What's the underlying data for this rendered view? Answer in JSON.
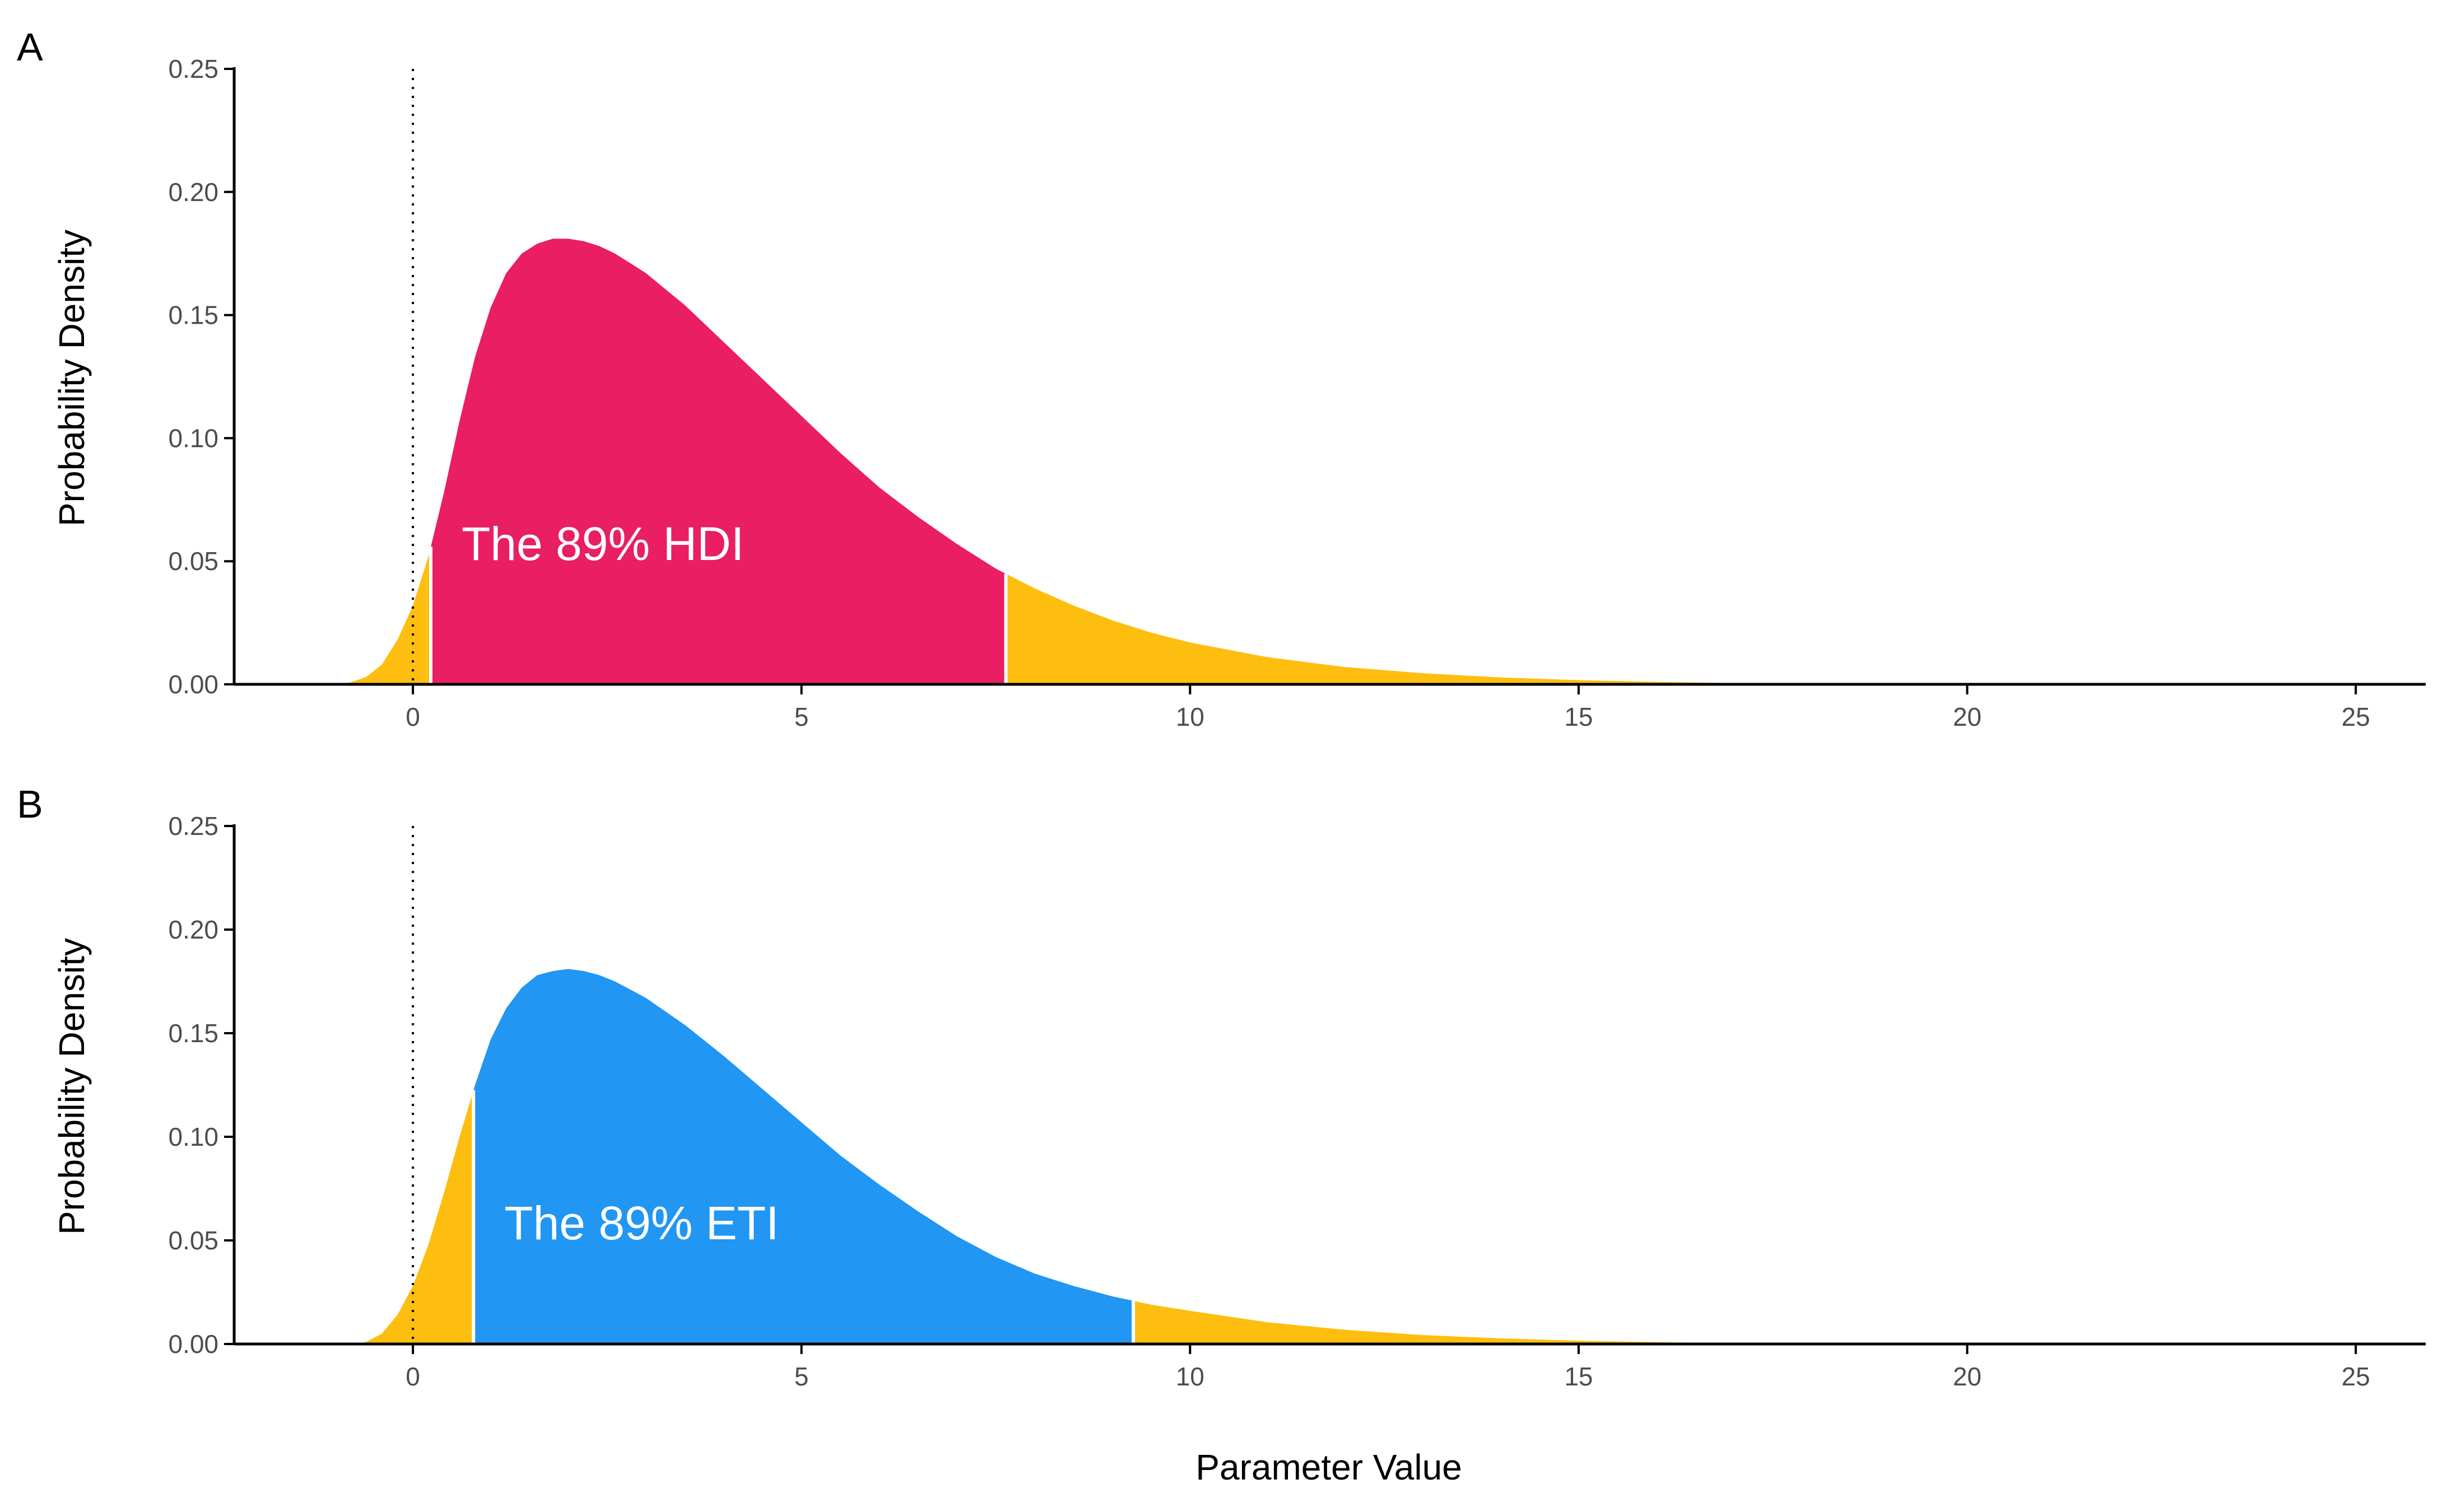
{
  "figure": {
    "xlabel": "Parameter Value",
    "colors": {
      "tail": "#FEBE10",
      "hdi": "#E91E63",
      "eti": "#2196F3",
      "axis": "#000000",
      "divider": "#FFFFFF"
    }
  },
  "chart_data": [
    {
      "type": "area",
      "panel_label": "A",
      "title": "",
      "xlabel": "Parameter Value",
      "ylabel": "Probability Density",
      "xlim": [
        -2.3,
        25.9
      ],
      "ylim": [
        0,
        0.25
      ],
      "x_ticks": [
        0,
        5,
        10,
        15,
        20,
        25
      ],
      "x_tick_labels": [
        "0",
        "5",
        "10",
        "15",
        "20",
        "25"
      ],
      "y_ticks": [
        0,
        0.05,
        0.1,
        0.15,
        0.2,
        0.25
      ],
      "y_tick_labels": [
        "0.00",
        "0.05",
        "0.10",
        "0.15",
        "0.20",
        "0.25"
      ],
      "grid": false,
      "reference_line": {
        "x": 0,
        "style": "dotted"
      },
      "interval": {
        "kind": "HDI",
        "level": 0.89,
        "lower": 0.23,
        "upper": 7.63,
        "label": "The 89% HDI"
      },
      "density": {
        "x": [
          -1.0,
          -0.8,
          -0.6,
          -0.4,
          -0.2,
          0.0,
          0.2,
          0.4,
          0.6,
          0.8,
          1.0,
          1.2,
          1.4,
          1.6,
          1.8,
          2.0,
          2.2,
          2.4,
          2.6,
          2.8,
          3.0,
          3.5,
          4.0,
          4.5,
          5.0,
          5.5,
          6.0,
          6.5,
          7.0,
          7.5,
          8.0,
          8.5,
          9.0,
          9.5,
          10.0,
          11.0,
          12.0,
          13.0,
          14.0,
          15.0,
          16.0,
          17.0,
          17.8
        ],
        "y": [
          0.0,
          0.0008,
          0.003,
          0.008,
          0.018,
          0.032,
          0.052,
          0.078,
          0.107,
          0.133,
          0.153,
          0.167,
          0.175,
          0.179,
          0.181,
          0.181,
          0.18,
          0.178,
          0.175,
          0.171,
          0.167,
          0.154,
          0.139,
          0.124,
          0.109,
          0.094,
          0.08,
          0.068,
          0.057,
          0.047,
          0.039,
          0.032,
          0.026,
          0.021,
          0.017,
          0.011,
          0.007,
          0.0045,
          0.0028,
          0.0017,
          0.001,
          0.0005,
          0.0
        ]
      }
    },
    {
      "type": "area",
      "panel_label": "B",
      "title": "",
      "xlabel": "Parameter Value",
      "ylabel": "Probability Density",
      "xlim": [
        -2.3,
        25.9
      ],
      "ylim": [
        0,
        0.25
      ],
      "x_ticks": [
        0,
        5,
        10,
        15,
        20,
        25
      ],
      "x_tick_labels": [
        "0",
        "5",
        "10",
        "15",
        "20",
        "25"
      ],
      "y_ticks": [
        0,
        0.05,
        0.1,
        0.15,
        0.2,
        0.25
      ],
      "y_tick_labels": [
        "0.00",
        "0.05",
        "0.10",
        "0.15",
        "0.20",
        "0.25"
      ],
      "grid": false,
      "reference_line": {
        "x": 0,
        "style": "dotted"
      },
      "interval": {
        "kind": "ETI",
        "level": 0.89,
        "lower": 0.78,
        "upper": 9.27,
        "label": "The 89% ETI"
      },
      "density": {
        "x": [
          -0.7,
          -0.6,
          -0.4,
          -0.2,
          0.0,
          0.2,
          0.4,
          0.6,
          0.8,
          1.0,
          1.2,
          1.4,
          1.6,
          1.8,
          2.0,
          2.2,
          2.4,
          2.6,
          2.8,
          3.0,
          3.5,
          4.0,
          4.5,
          5.0,
          5.5,
          6.0,
          6.5,
          7.0,
          7.5,
          8.0,
          8.5,
          9.0,
          9.5,
          10.0,
          11.0,
          12.0,
          13.0,
          14.0,
          15.0,
          16.0,
          17.0,
          17.3
        ],
        "y": [
          0.0,
          0.001,
          0.005,
          0.014,
          0.028,
          0.048,
          0.073,
          0.1,
          0.125,
          0.147,
          0.162,
          0.172,
          0.178,
          0.18,
          0.181,
          0.18,
          0.178,
          0.175,
          0.171,
          0.167,
          0.154,
          0.139,
          0.123,
          0.107,
          0.091,
          0.077,
          0.064,
          0.052,
          0.042,
          0.034,
          0.028,
          0.023,
          0.019,
          0.016,
          0.0105,
          0.0068,
          0.0043,
          0.0027,
          0.0016,
          0.0009,
          0.0003,
          0.0
        ]
      }
    }
  ]
}
